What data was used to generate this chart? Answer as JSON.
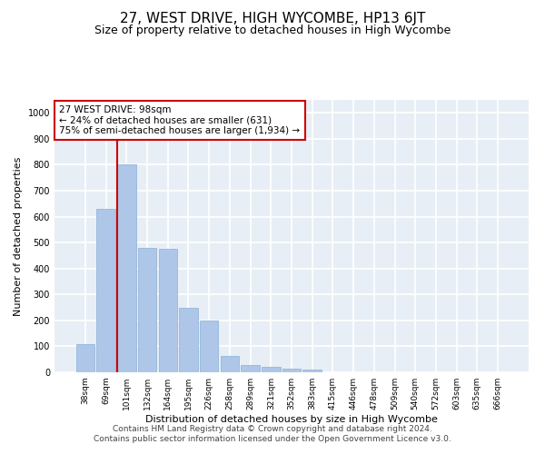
{
  "title": "27, WEST DRIVE, HIGH WYCOMBE, HP13 6JT",
  "subtitle": "Size of property relative to detached houses in High Wycombe",
  "xlabel": "Distribution of detached houses by size in High Wycombe",
  "ylabel": "Number of detached properties",
  "categories": [
    "38sqm",
    "69sqm",
    "101sqm",
    "132sqm",
    "164sqm",
    "195sqm",
    "226sqm",
    "258sqm",
    "289sqm",
    "321sqm",
    "352sqm",
    "383sqm",
    "415sqm",
    "446sqm",
    "478sqm",
    "509sqm",
    "540sqm",
    "572sqm",
    "603sqm",
    "635sqm",
    "666sqm"
  ],
  "values": [
    110,
    630,
    800,
    480,
    475,
    250,
    200,
    63,
    28,
    22,
    15,
    10,
    0,
    0,
    0,
    0,
    0,
    0,
    0,
    0,
    0
  ],
  "bar_color": "#aec6e8",
  "bar_edge_color": "#8ab0d8",
  "vline_color": "#cc0000",
  "vline_x_index": 2,
  "annotation_text": "27 WEST DRIVE: 98sqm\n← 24% of detached houses are smaller (631)\n75% of semi-detached houses are larger (1,934) →",
  "annotation_box_color": "#ffffff",
  "annotation_border_color": "#cc0000",
  "ylim": [
    0,
    1050
  ],
  "yticks": [
    0,
    100,
    200,
    300,
    400,
    500,
    600,
    700,
    800,
    900,
    1000
  ],
  "footer": "Contains HM Land Registry data © Crown copyright and database right 2024.\nContains public sector information licensed under the Open Government Licence v3.0.",
  "background_color": "#e8eef5",
  "grid_color": "#ffffff",
  "title_fontsize": 11,
  "subtitle_fontsize": 9,
  "ylabel_fontsize": 8,
  "xlabel_fontsize": 8,
  "tick_fontsize": 6.5,
  "annotation_fontsize": 7.5,
  "footer_fontsize": 6.5
}
